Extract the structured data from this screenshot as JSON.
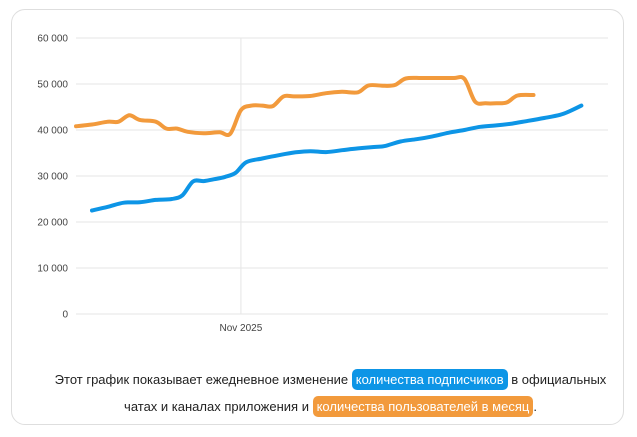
{
  "chart_data": {
    "type": "line",
    "xlabel": "",
    "ylabel": "",
    "ylim": [
      0,
      60000
    ],
    "x_tick_labels": [
      "Nov 2025"
    ],
    "y_tick_labels": [
      "0",
      "10 000",
      "20 000",
      "30 000",
      "40 000",
      "50 000",
      "60 000"
    ],
    "grid": true,
    "series": [
      {
        "key": "subscribers",
        "color": "#0d95e6",
        "points": [
          [
            3,
            22500
          ],
          [
            6,
            23300
          ],
          [
            9,
            24200
          ],
          [
            12,
            24300
          ],
          [
            15,
            24800
          ],
          [
            18,
            25000
          ],
          [
            20,
            25800
          ],
          [
            22,
            28800
          ],
          [
            24,
            28900
          ],
          [
            26,
            29300
          ],
          [
            28,
            29800
          ],
          [
            30,
            30700
          ],
          [
            32,
            33000
          ],
          [
            35,
            33800
          ],
          [
            38,
            34500
          ],
          [
            41,
            35100
          ],
          [
            44,
            35400
          ],
          [
            47,
            35200
          ],
          [
            50,
            35600
          ],
          [
            53,
            36000
          ],
          [
            56,
            36300
          ],
          [
            58,
            36500
          ],
          [
            61,
            37500
          ],
          [
            64,
            38000
          ],
          [
            67,
            38600
          ],
          [
            70,
            39400
          ],
          [
            73,
            40000
          ],
          [
            76,
            40700
          ],
          [
            79,
            41000
          ],
          [
            82,
            41400
          ],
          [
            85,
            42000
          ],
          [
            88,
            42600
          ],
          [
            91,
            43300
          ],
          [
            93,
            44200
          ],
          [
            95,
            45300
          ]
        ]
      },
      {
        "key": "users_per_month",
        "color": "#f29a3c",
        "points": [
          [
            0,
            40800
          ],
          [
            3,
            41200
          ],
          [
            6,
            41800
          ],
          [
            8,
            41800
          ],
          [
            10,
            43200
          ],
          [
            12,
            42200
          ],
          [
            15,
            41800
          ],
          [
            17,
            40300
          ],
          [
            19,
            40300
          ],
          [
            21,
            39600
          ],
          [
            24,
            39300
          ],
          [
            27,
            39500
          ],
          [
            29,
            39200
          ],
          [
            31,
            44300
          ],
          [
            33,
            45300
          ],
          [
            35,
            45300
          ],
          [
            37,
            45200
          ],
          [
            39,
            47300
          ],
          [
            41,
            47300
          ],
          [
            44,
            47400
          ],
          [
            47,
            48000
          ],
          [
            50,
            48300
          ],
          [
            53,
            48200
          ],
          [
            55,
            49700
          ],
          [
            58,
            49600
          ],
          [
            60,
            49800
          ],
          [
            62,
            51200
          ],
          [
            65,
            51300
          ],
          [
            68,
            51300
          ],
          [
            71,
            51300
          ],
          [
            73,
            51100
          ],
          [
            75,
            46200
          ],
          [
            77,
            45800
          ],
          [
            79,
            45800
          ],
          [
            81,
            46000
          ],
          [
            83,
            47500
          ],
          [
            86,
            47600
          ]
        ]
      }
    ]
  },
  "caption": {
    "before_blue": "Этот график показывает ежедневное изменение ",
    "blue_label": "количества подписчиков",
    "after_blue": " в официальных чатах и каналах приложения и ",
    "orange_label": "количества пользователей в месяц",
    "after_orange": "."
  }
}
